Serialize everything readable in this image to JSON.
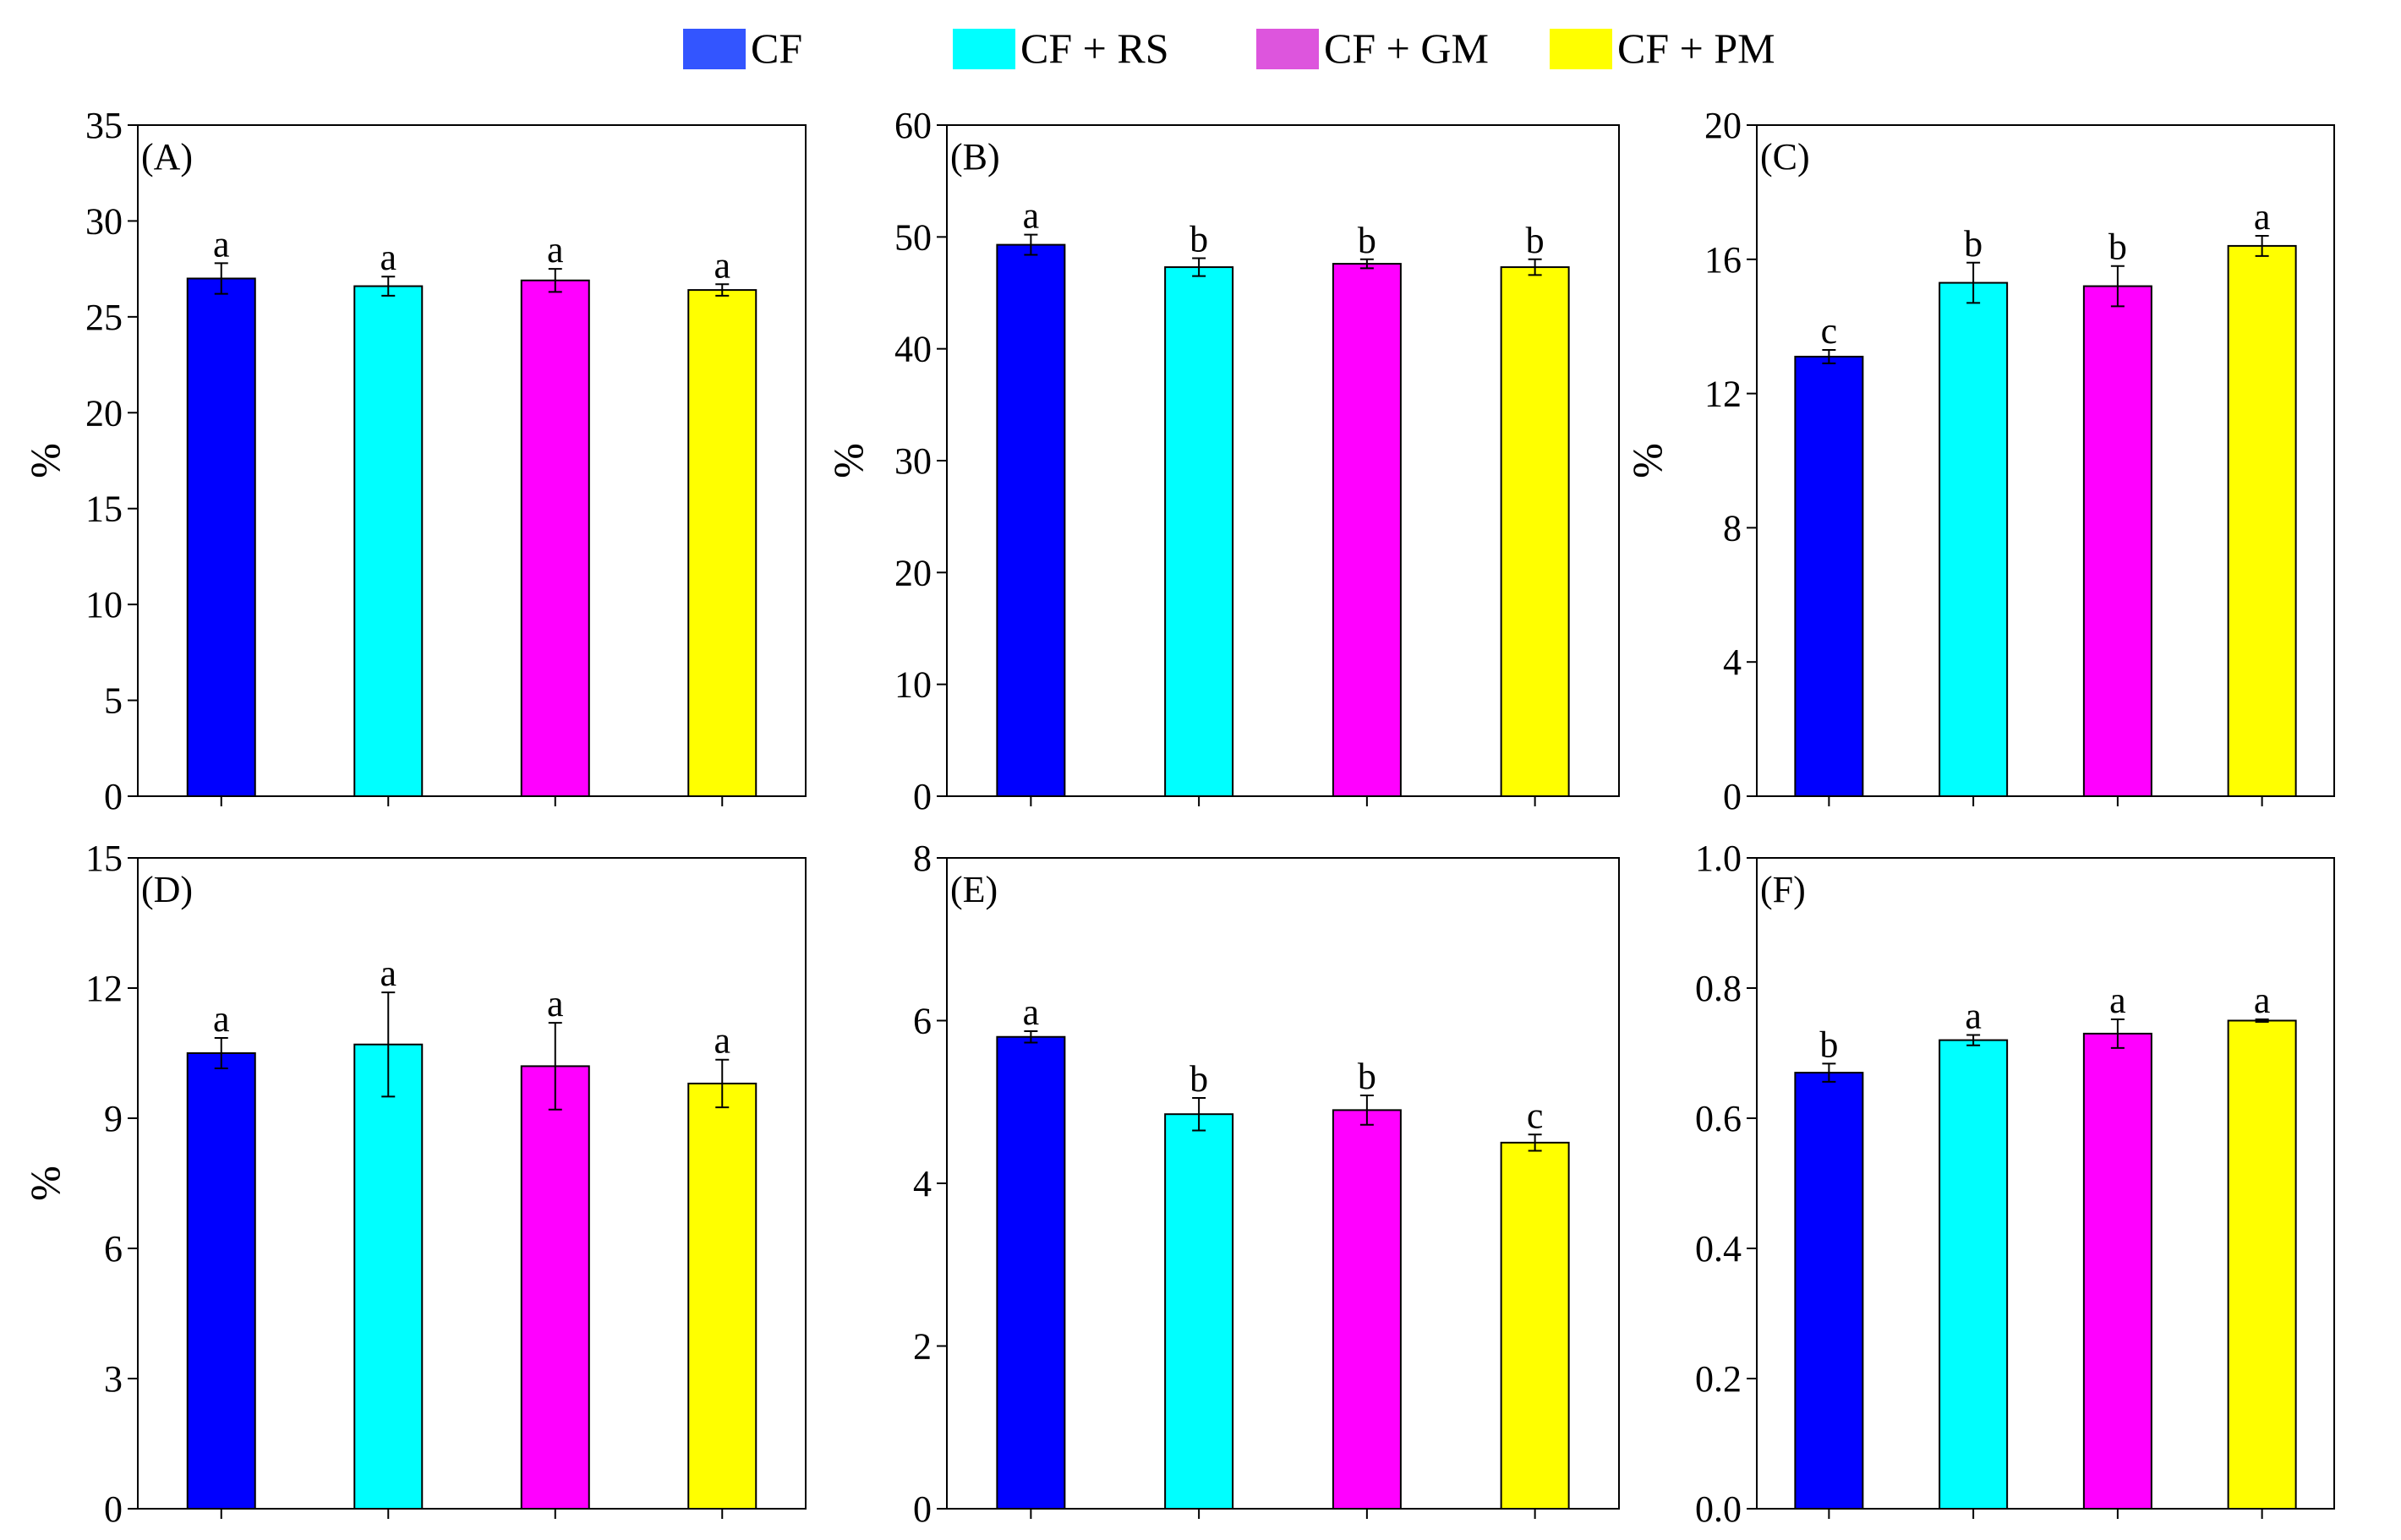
{
  "colors": {
    "CF": "#0000ff",
    "CF + RS": "#00ffff",
    "CF + GM": "#ff00ff",
    "CF + PM": "#ffff00",
    "legend_CF": "#3355ff",
    "legend_CF + GM": "#dd55dd"
  },
  "legend": {
    "items": [
      "CF",
      "CF + RS",
      "CF + GM",
      "CF + PM"
    ],
    "placement": "top-center"
  },
  "chart_data": [
    {
      "type": "bar",
      "panel": "(A)",
      "ylabel": "%",
      "categories": [
        "CF",
        "CF + RS",
        "CF + GM",
        "CF + PM"
      ],
      "values": [
        27.0,
        26.6,
        26.9,
        26.4
      ],
      "errors": [
        0.8,
        0.5,
        0.6,
        0.3
      ],
      "letters": [
        "a",
        "a",
        "a",
        "a"
      ],
      "ylim": [
        0,
        35
      ],
      "yticks": [
        0,
        5,
        10,
        15,
        20,
        25,
        30,
        35
      ],
      "yticklabels": [
        "0",
        "5",
        "10",
        "15",
        "20",
        "25",
        "30",
        "35"
      ]
    },
    {
      "type": "bar",
      "panel": "(B)",
      "ylabel": "%",
      "categories": [
        "CF",
        "CF + RS",
        "CF + GM",
        "CF + PM"
      ],
      "values": [
        49.3,
        47.3,
        47.6,
        47.3
      ],
      "errors": [
        0.9,
        0.8,
        0.4,
        0.7
      ],
      "letters": [
        "a",
        "b",
        "b",
        "b"
      ],
      "ylim": [
        0,
        60
      ],
      "yticks": [
        0,
        10,
        20,
        30,
        40,
        50,
        60
      ],
      "yticklabels": [
        "0",
        "10",
        "20",
        "30",
        "40",
        "50",
        "60"
      ]
    },
    {
      "type": "bar",
      "panel": "(C)",
      "ylabel": "%",
      "categories": [
        "CF",
        "CF + RS",
        "CF + GM",
        "CF + PM"
      ],
      "values": [
        13.1,
        15.3,
        15.2,
        16.4
      ],
      "errors": [
        0.2,
        0.6,
        0.6,
        0.3
      ],
      "letters": [
        "c",
        "b",
        "b",
        "a"
      ],
      "ylim": [
        0,
        20
      ],
      "yticks": [
        0,
        4,
        8,
        12,
        16,
        20
      ],
      "yticklabels": [
        "0",
        "4",
        "8",
        "12",
        "16",
        "20"
      ]
    },
    {
      "type": "bar",
      "panel": "(D)",
      "ylabel": "%",
      "categories": [
        "CF",
        "CF + RS",
        "CF + GM",
        "CF + PM"
      ],
      "values": [
        10.5,
        10.7,
        10.2,
        9.8
      ],
      "errors": [
        0.35,
        1.2,
        1.0,
        0.55
      ],
      "letters": [
        "a",
        "a",
        "a",
        "a"
      ],
      "ylim": [
        0,
        15
      ],
      "yticks": [
        0,
        3,
        6,
        9,
        12,
        15
      ],
      "yticklabels": [
        "0",
        "3",
        "6",
        "9",
        "12",
        "15"
      ]
    },
    {
      "type": "bar",
      "panel": "(E)",
      "ylabel": "",
      "categories": [
        "CF",
        "CF + RS",
        "CF + GM",
        "CF + PM"
      ],
      "values": [
        5.8,
        4.85,
        4.9,
        4.5
      ],
      "errors": [
        0.07,
        0.2,
        0.18,
        0.1
      ],
      "letters": [
        "a",
        "b",
        "b",
        "c"
      ],
      "ylim": [
        0,
        8
      ],
      "yticks": [
        0,
        2,
        4,
        6,
        8
      ],
      "yticklabels": [
        "0",
        "2",
        "4",
        "6",
        "8"
      ]
    },
    {
      "type": "bar",
      "panel": "(F)",
      "ylabel": "",
      "categories": [
        "CF",
        "CF + RS",
        "CF + GM",
        "CF + PM"
      ],
      "values": [
        0.67,
        0.72,
        0.73,
        0.75
      ],
      "errors": [
        0.014,
        0.008,
        0.022,
        0.002
      ],
      "letters": [
        "b",
        "a",
        "a",
        "a"
      ],
      "ylim": [
        0,
        1.0
      ],
      "yticks": [
        0,
        0.2,
        0.4,
        0.6,
        0.8,
        1.0
      ],
      "yticklabels": [
        "0.0",
        "0.2",
        "0.4",
        "0.6",
        "0.8",
        "1.0"
      ]
    }
  ]
}
